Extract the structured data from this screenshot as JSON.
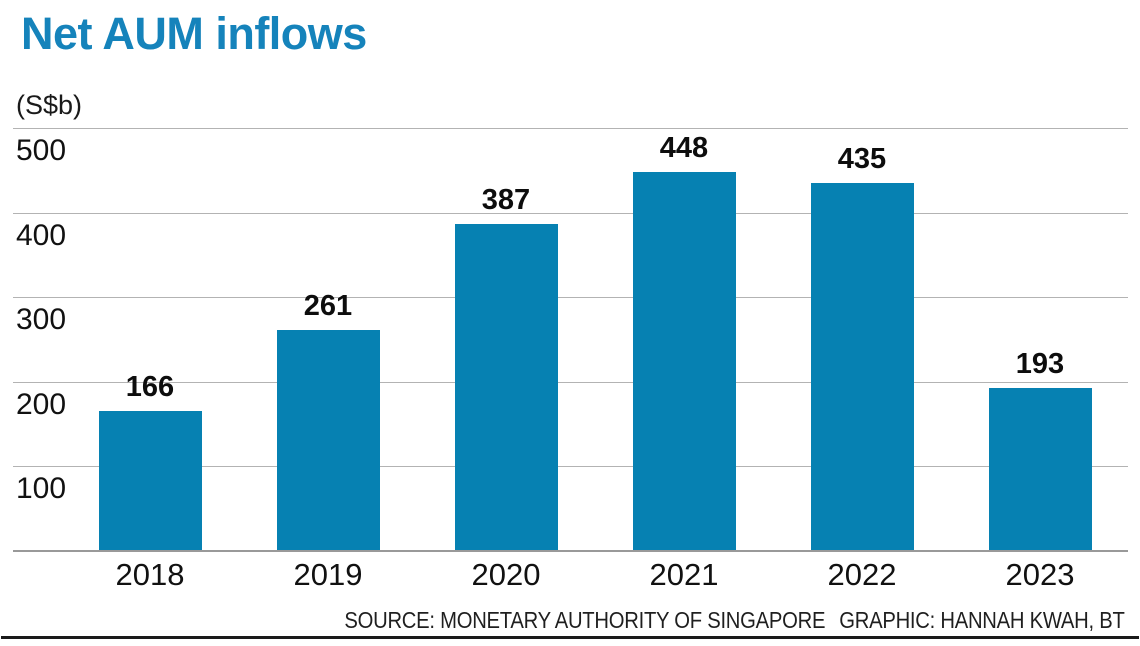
{
  "page": {
    "title": "Net AUM inflows",
    "unit": "(S$b)",
    "source": "SOURCE: MONETARY AUTHORITY OF SINGAPORE",
    "credit": "GRAPHIC: HANNAH KWAH, BT"
  },
  "colors": {
    "title": "#1583bb",
    "bar": "#0681b2",
    "gridline": "#b3b3b3",
    "axis": "#999999",
    "text": "#111111",
    "rule": "#1a1a1a"
  },
  "chart_data": {
    "type": "bar",
    "categories": [
      "2018",
      "2019",
      "2020",
      "2021",
      "2022",
      "2023"
    ],
    "values": [
      166,
      261,
      387,
      448,
      435,
      193
    ],
    "title": "Net AUM inflows",
    "xlabel": "",
    "ylabel": "(S$b)",
    "ylim": [
      0,
      500
    ],
    "yticks": [
      100,
      200,
      300,
      400,
      500
    ],
    "grid": true,
    "legend": false,
    "value_labels": true,
    "bar_color": "#0681b2"
  }
}
